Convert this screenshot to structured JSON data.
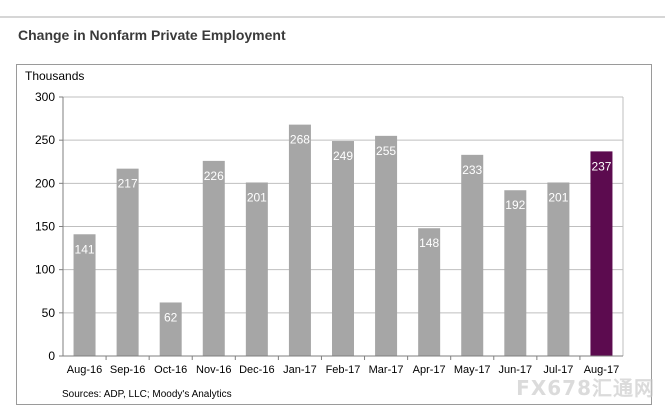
{
  "page": {
    "title": "Change in Nonfarm Private Employment",
    "source": "Sources: ADP, LLC; Moody's Analytics",
    "watermark": "FX678汇通网"
  },
  "colors": {
    "bar": "#a6a6a6",
    "highlight": "#5c0b4f",
    "grid": "#bfbfbf",
    "axis": "#7f7f7f",
    "label": "#ffffff"
  },
  "chart_data": {
    "type": "bar",
    "title": "Change in Nonfarm Private Employment",
    "ylabel": "Thousands",
    "xlabel": "",
    "ylim": [
      0,
      300
    ],
    "yticks": [
      0,
      50,
      100,
      150,
      200,
      250,
      300
    ],
    "grid": true,
    "categories": [
      "Aug-16",
      "Sep-16",
      "Oct-16",
      "Nov-16",
      "Dec-16",
      "Jan-17",
      "Feb-17",
      "Mar-17",
      "Apr-17",
      "May-17",
      "Jun-17",
      "Jul-17",
      "Aug-17"
    ],
    "values": [
      141,
      217,
      62,
      226,
      201,
      268,
      249,
      255,
      148,
      233,
      192,
      201,
      237
    ],
    "highlight_index": 12
  }
}
